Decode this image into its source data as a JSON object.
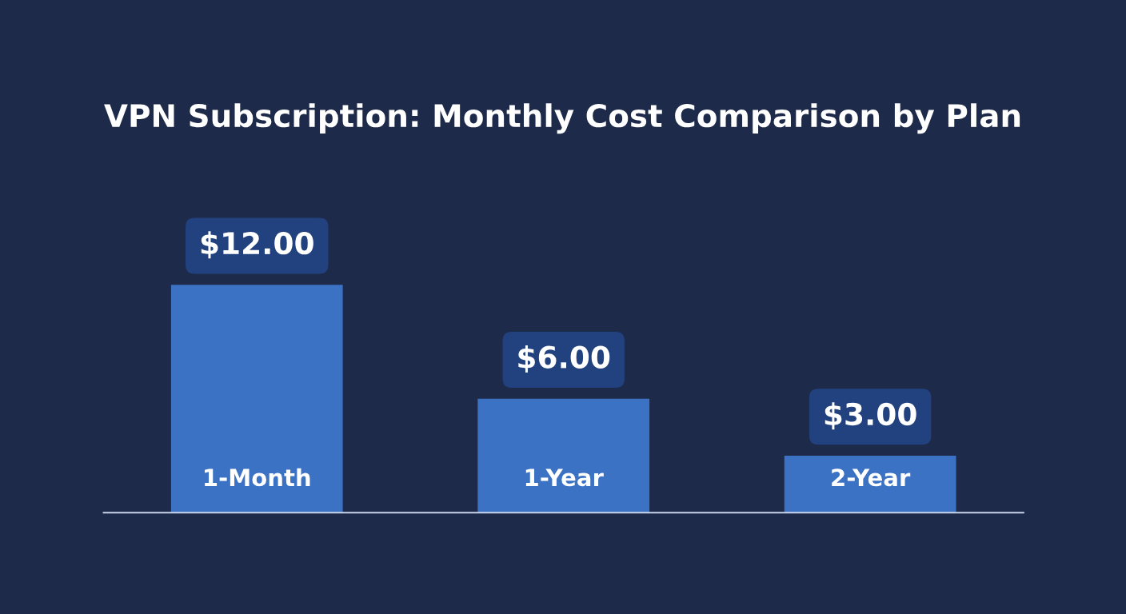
{
  "chart_data": {
    "type": "bar",
    "title": "VPN Subscription: Monthly Cost Comparison by Plan",
    "categories": [
      "1-Month",
      "1-Year",
      "2-Year"
    ],
    "values": [
      12,
      6,
      3
    ],
    "color": "#3c72c4",
    "value_labels": [
      "$12.00",
      "$6.00",
      "$3.00"
    ],
    "tick_labels": "x"
  }
}
